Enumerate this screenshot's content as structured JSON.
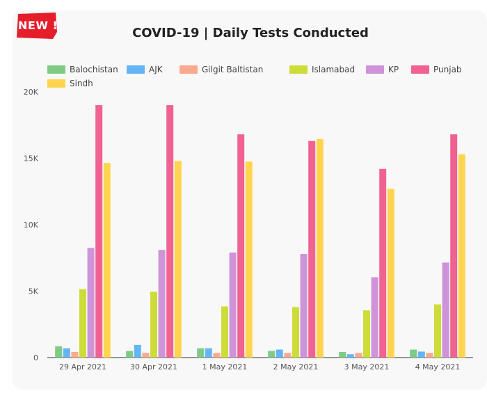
{
  "badge": {
    "label": "NEW !"
  },
  "chart_data": {
    "type": "bar",
    "title": "COVID-19   |   Daily Tests Conducted",
    "categories": [
      "29 Apr 2021",
      "30 Apr 2021",
      "1 May 2021",
      "2 May 2021",
      "3 May 2021",
      "4 May 2021"
    ],
    "yticks": [
      "0",
      "5K",
      "10K",
      "15K",
      "20K"
    ],
    "ylim": [
      0,
      20000
    ],
    "series": [
      {
        "name": "Balochistan",
        "color": "#7fcb85",
        "values": [
          850,
          500,
          700,
          500,
          420,
          600
        ]
      },
      {
        "name": "AJK",
        "color": "#63b5f5",
        "values": [
          700,
          950,
          700,
          600,
          250,
          450
        ]
      },
      {
        "name": "Gilgit Baltistan",
        "color": "#f9a98e",
        "values": [
          420,
          350,
          350,
          350,
          350,
          350
        ]
      },
      {
        "name": "Islamabad",
        "color": "#cddc39",
        "values": [
          5150,
          4950,
          3850,
          3800,
          3550,
          4000
        ]
      },
      {
        "name": "KP",
        "color": "#ce93d8",
        "values": [
          8250,
          8100,
          7900,
          7800,
          6050,
          7150
        ]
      },
      {
        "name": "Punjab",
        "color": "#f06292",
        "values": [
          19000,
          19000,
          16800,
          16300,
          14200,
          16800
        ]
      },
      {
        "name": "Sindh",
        "color": "#ffd54f",
        "values": [
          14650,
          14800,
          14750,
          16450,
          12700,
          15300
        ]
      }
    ],
    "grid": false,
    "legend_position": "top"
  }
}
